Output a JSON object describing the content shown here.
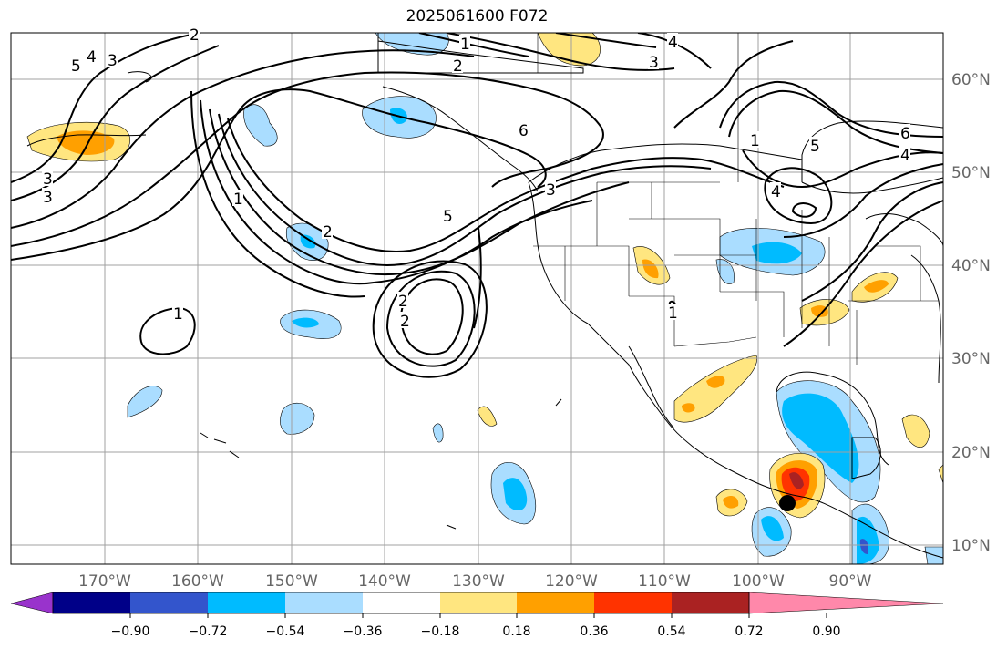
{
  "title": "2025061600 F072",
  "longitude_labels": [
    "170°W",
    "160°W",
    "150°W",
    "140°W",
    "130°W",
    "120°W",
    "110°W",
    "100°W",
    "90°W"
  ],
  "latitude_labels": [
    "60°N",
    "50°N",
    "40°N",
    "30°N",
    "20°N",
    "10°N"
  ],
  "colorbar": {
    "ticks": [
      "−0.90",
      "−0.72",
      "−0.54",
      "−0.36",
      "−0.18",
      "0.18",
      "0.36",
      "0.54",
      "0.72",
      "0.90"
    ],
    "colors": [
      "#9933cc",
      "#000088",
      "#3355cc",
      "#00bbff",
      "#aaddff",
      "#ffffff",
      "#ffe680",
      "#ffa000",
      "#ff3300",
      "#aa2222",
      "#ff88aa"
    ]
  },
  "contour_labels": [
    "5",
    "4",
    "3",
    "2",
    "1",
    "4",
    "3",
    "2",
    "1",
    "6",
    "5",
    "4",
    "3",
    "1",
    "2",
    "3",
    "5",
    "6",
    "4",
    "1",
    "3",
    "2",
    "2",
    "1"
  ],
  "colors": {
    "lightblue": "#aaddff",
    "blue": "#00bbff",
    "yellow": "#ffe680",
    "orange": "#ffa000",
    "red": "#ff3300",
    "darkred": "#aa2222"
  }
}
